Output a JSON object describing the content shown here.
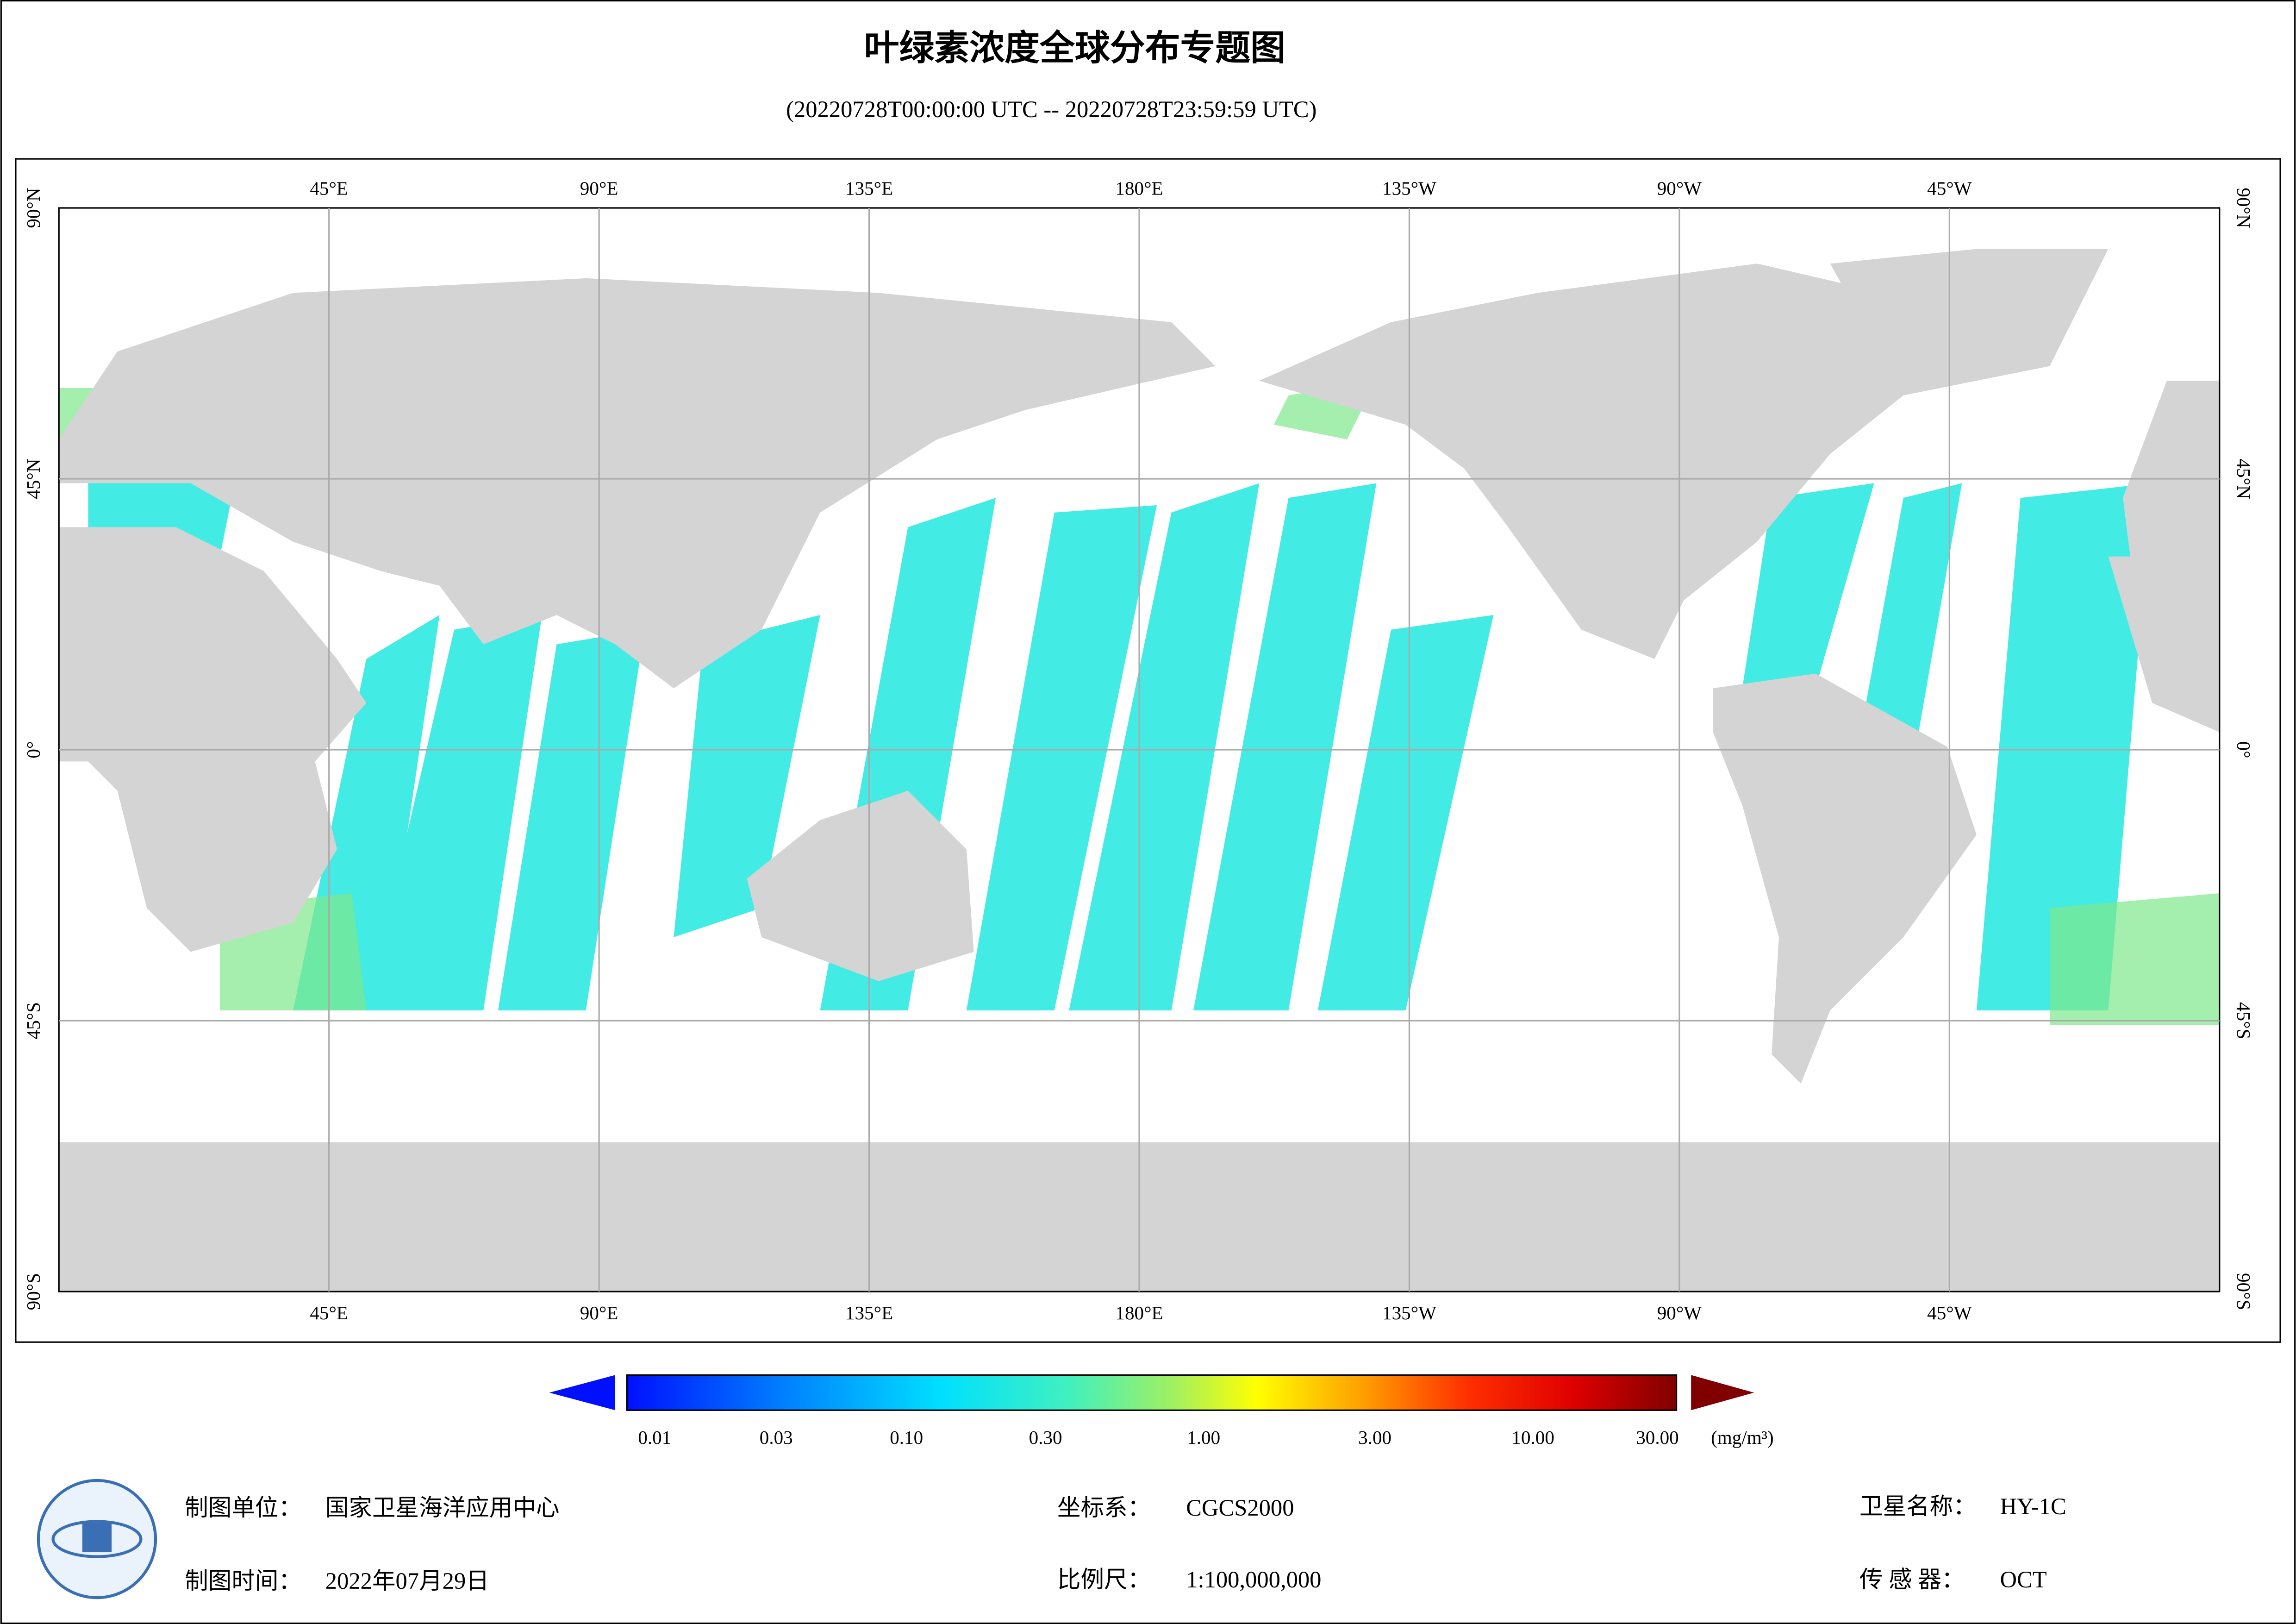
{
  "header": {
    "title": "叶绿素浓度全球分布专题图",
    "subtitle": "(20220728T00:00:00 UTC -- 20220728T23:59:59 UTC)"
  },
  "map": {
    "lon_labels": [
      "45°E",
      "90°E",
      "135°E",
      "180°E",
      "135°W",
      "90°W",
      "45°W"
    ],
    "lat_labels": [
      "90°N",
      "45°N",
      "0°",
      "45°S",
      "90°S"
    ]
  },
  "colorbar": {
    "ticks": [
      "0.01",
      "0.03",
      "0.10",
      "0.30",
      "1.00",
      "3.00",
      "10.00",
      "30.00"
    ],
    "unit": "(mg/m³)"
  },
  "footer": {
    "unit_label": "制图单位：",
    "unit_value": "国家卫星海洋应用中心",
    "time_label": "制图时间：",
    "time_value": "2022年07月29日",
    "crs_label": "坐标系：",
    "crs_value": "CGCS2000",
    "scale_label": "比例尺：",
    "scale_value": "1:100,000,000",
    "satellite_label": "卫星名称：",
    "satellite_value": "HY-1C",
    "sensor_label": "传 感 器：",
    "sensor_value": "OCT"
  }
}
